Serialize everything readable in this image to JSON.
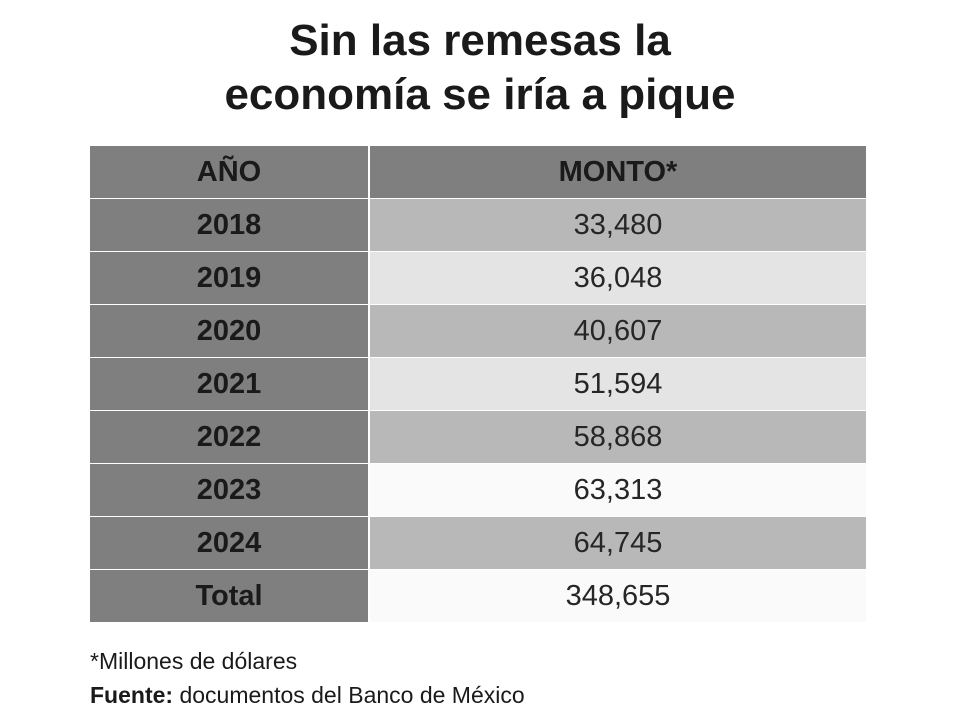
{
  "title": {
    "line1": "Sin las remesas la",
    "line2": "economía se iría a pique"
  },
  "chart_data": {
    "type": "table",
    "columns": [
      "AÑO",
      "MONTO*"
    ],
    "rows": [
      {
        "year": "2018",
        "amount": "33,480",
        "value": 33480
      },
      {
        "year": "2019",
        "amount": "36,048",
        "value": 36048
      },
      {
        "year": "2020",
        "amount": "40,607",
        "value": 40607
      },
      {
        "year": "2021",
        "amount": "51,594",
        "value": 51594
      },
      {
        "year": "2022",
        "amount": "58,868",
        "value": 58868
      },
      {
        "year": "2023",
        "amount": "63,313",
        "value": 63313
      },
      {
        "year": "2024",
        "amount": "64,745",
        "value": 64745
      }
    ],
    "total": {
      "label": "Total",
      "amount": "348,655",
      "value": 348655
    }
  },
  "footnote": {
    "units": "*Millones de dólares",
    "source_label": "Fuente:",
    "source_text": " documentos del Banco de México"
  },
  "colors": {
    "header_bg": "#7f7f7f",
    "year_bg": "#7f7f7f",
    "amount_dark": "#b8b8b8",
    "amount_light": "#e4e4e4",
    "amount_white": "#fafafa"
  }
}
